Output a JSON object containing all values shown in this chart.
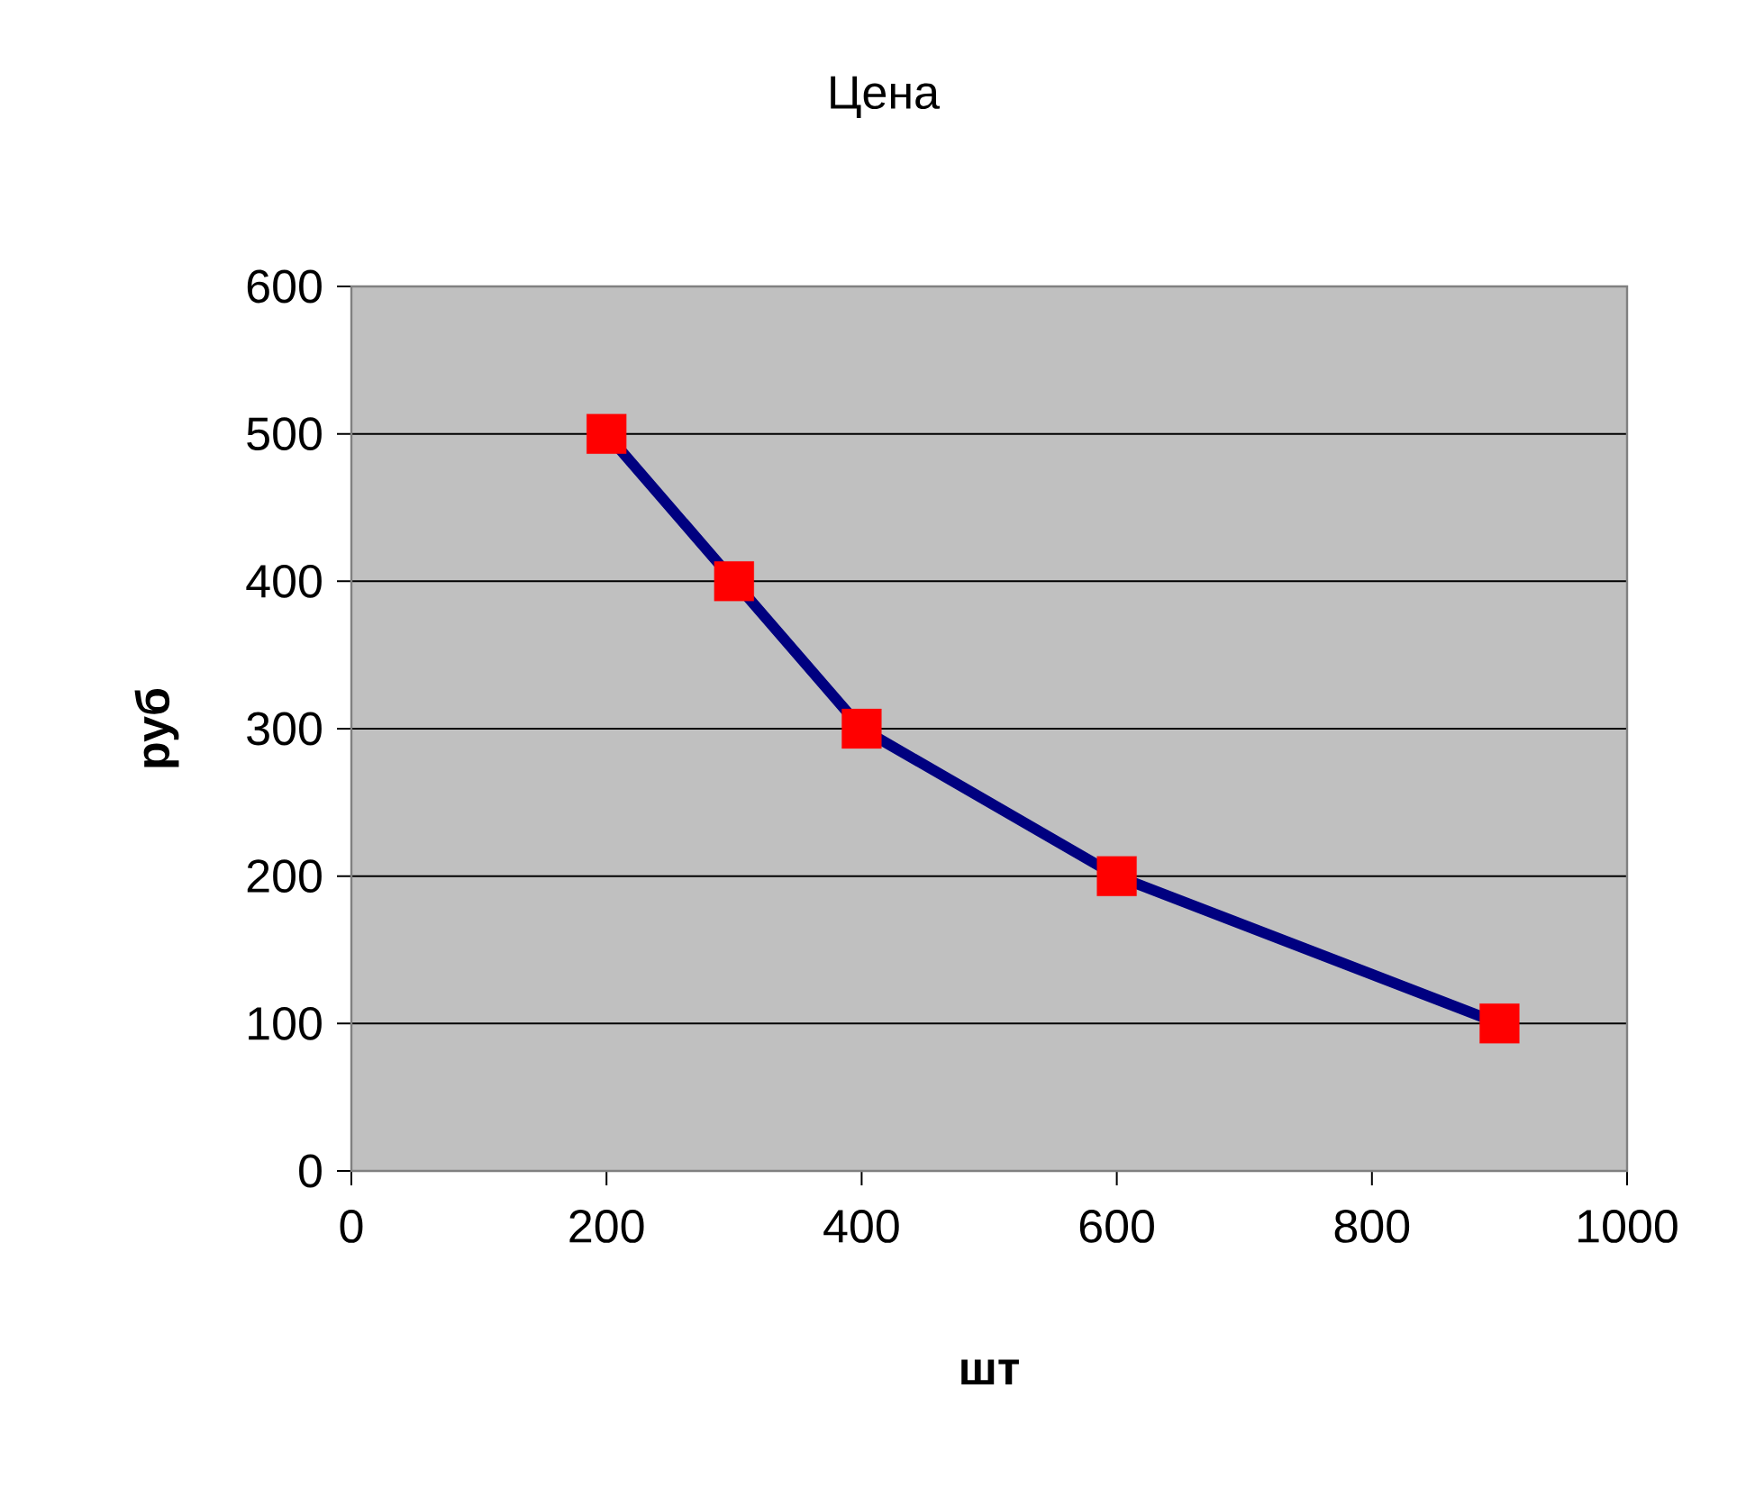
{
  "chart_data": {
    "type": "line",
    "title": "Цена",
    "xlabel": "шт",
    "ylabel": "руб",
    "x": [
      200,
      300,
      400,
      600,
      900
    ],
    "series": [
      {
        "color": "#000080",
        "values": [
          500,
          400,
          300,
          200,
          100
        ],
        "colors": [
          "#ff0000",
          "#ff0000",
          "#ff0000",
          "#ff0000",
          "#ff0000"
        ]
      }
    ],
    "xlim": [
      0,
      1000
    ],
    "xticks": [
      0,
      200,
      400,
      600,
      800,
      1000
    ],
    "ylim": [
      0,
      600
    ],
    "yticks": [
      0,
      100,
      200,
      300,
      400,
      500,
      600
    ],
    "grid": "y",
    "marker": "square",
    "line_style": "solid"
  }
}
